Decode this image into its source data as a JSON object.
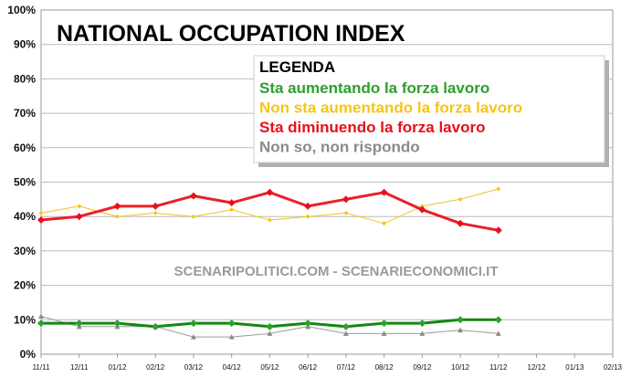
{
  "chart_data": {
    "type": "line",
    "title": "NATIONAL OCCUPATION INDEX",
    "watermark": "SCENARIPOLITICI.COM - SCENARIECONOMICI.IT",
    "x": [
      "11/11",
      "12/11",
      "01/12",
      "02/12",
      "03/12",
      "04/12",
      "05/12",
      "06/12",
      "07/12",
      "08/12",
      "09/12",
      "10/12",
      "11/12",
      "12/12",
      "01/13",
      "02/13"
    ],
    "ylim": [
      0,
      100
    ],
    "y_ticks": [
      "0%",
      "10%",
      "20%",
      "30%",
      "40%",
      "50%",
      "60%",
      "70%",
      "80%",
      "90%",
      "100%"
    ],
    "grid": true,
    "legend": {
      "title": "LEGENDA",
      "position": "top-right"
    },
    "series": [
      {
        "name": "Sta aumentando la forza lavoro",
        "color": "#2ca02c",
        "line_color": "#118811",
        "marker": "diamond",
        "values": [
          9,
          9,
          9,
          8,
          9,
          9,
          8,
          9,
          8,
          9,
          9,
          10,
          10,
          null,
          null,
          null
        ]
      },
      {
        "name": "Non sta aumentando la forza lavoro",
        "color": "#f5c518",
        "line_color": "#f0c020",
        "marker": "diamond",
        "values": [
          41,
          43,
          40,
          41,
          40,
          42,
          39,
          40,
          41,
          38,
          43,
          45,
          48,
          null,
          null,
          null
        ]
      },
      {
        "name": "Sta diminuendo la forza lavoro",
        "color": "#e8101a",
        "line_color": "#e8202a",
        "marker": "diamond",
        "values": [
          39,
          40,
          43,
          43,
          46,
          44,
          47,
          43,
          45,
          47,
          42,
          38,
          36,
          null,
          null,
          null
        ]
      },
      {
        "name": "Non so, non rispondo",
        "color": "#8a8a8a",
        "line_color": "#9a9a9a",
        "marker": "triangle",
        "values": [
          11,
          8,
          8,
          8,
          5,
          5,
          6,
          8,
          6,
          6,
          6,
          7,
          6,
          null,
          null,
          null
        ]
      }
    ]
  }
}
